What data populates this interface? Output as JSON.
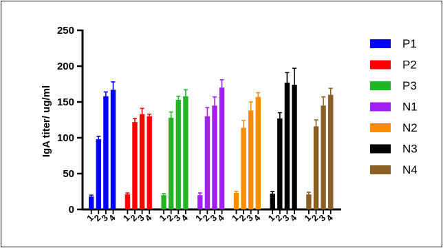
{
  "chart_data": {
    "type": "bar",
    "ylabel": "IgA titer/ ug/ml",
    "xlabel": "",
    "ylim": [
      0,
      250
    ],
    "yticks": [
      0,
      50,
      100,
      150,
      200,
      250
    ],
    "categories": [
      "1",
      "2",
      "3",
      "4"
    ],
    "error_bars": true,
    "legend_position": "right",
    "series": [
      {
        "name": "P1",
        "color": "#0000ff",
        "values": [
          18,
          98,
          158,
          167
        ],
        "errors": [
          2,
          4,
          6,
          11
        ]
      },
      {
        "name": "P2",
        "color": "#ff0000",
        "values": [
          21,
          122,
          133,
          130
        ],
        "errors": [
          2,
          5,
          8,
          3
        ]
      },
      {
        "name": "P3",
        "color": "#22b526",
        "values": [
          20,
          128,
          153,
          158
        ],
        "errors": [
          2,
          8,
          5,
          9
        ]
      },
      {
        "name": "N1",
        "color": "#a020f0",
        "values": [
          20,
          130,
          145,
          170
        ],
        "errors": [
          3,
          12,
          12,
          11
        ]
      },
      {
        "name": "N2",
        "color": "#ff8c00",
        "values": [
          23,
          114,
          138,
          157
        ],
        "errors": [
          2,
          10,
          12,
          6
        ]
      },
      {
        "name": "N3",
        "color": "#000000",
        "values": [
          22,
          127,
          177,
          174
        ],
        "errors": [
          3,
          8,
          14,
          23
        ]
      },
      {
        "name": "N4",
        "color": "#8b6025",
        "values": [
          21,
          116,
          145,
          160
        ],
        "errors": [
          3,
          9,
          12,
          9
        ]
      }
    ]
  }
}
